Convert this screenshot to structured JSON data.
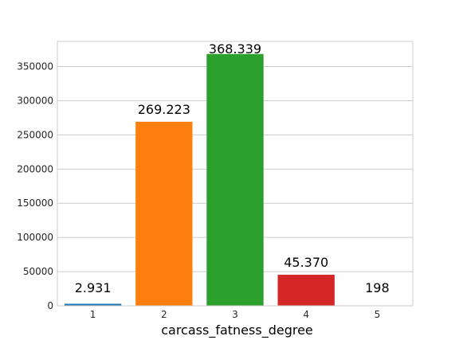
{
  "chart_data": {
    "type": "bar",
    "title": "",
    "xlabel": "carcass_fatness_degree",
    "ylabel": "",
    "categories": [
      "1",
      "2",
      "3",
      "4",
      "5"
    ],
    "values": [
      2931,
      269223,
      368339,
      45370,
      198
    ],
    "data_labels": [
      "2.931",
      "269.223",
      "368.339",
      "45.370",
      "198"
    ],
    "colors": [
      "#1f77b4",
      "#ff7f0e",
      "#2ca02c",
      "#d62728",
      "#9467bd"
    ],
    "ylim": [
      0,
      386756
    ],
    "yticks": [
      0,
      50000,
      100000,
      150000,
      200000,
      250000,
      300000,
      350000
    ],
    "ytick_labels": [
      "0",
      "50000",
      "100000",
      "150000",
      "200000",
      "250000",
      "300000",
      "350000"
    ],
    "grid": "horizontal",
    "legend": "none"
  }
}
